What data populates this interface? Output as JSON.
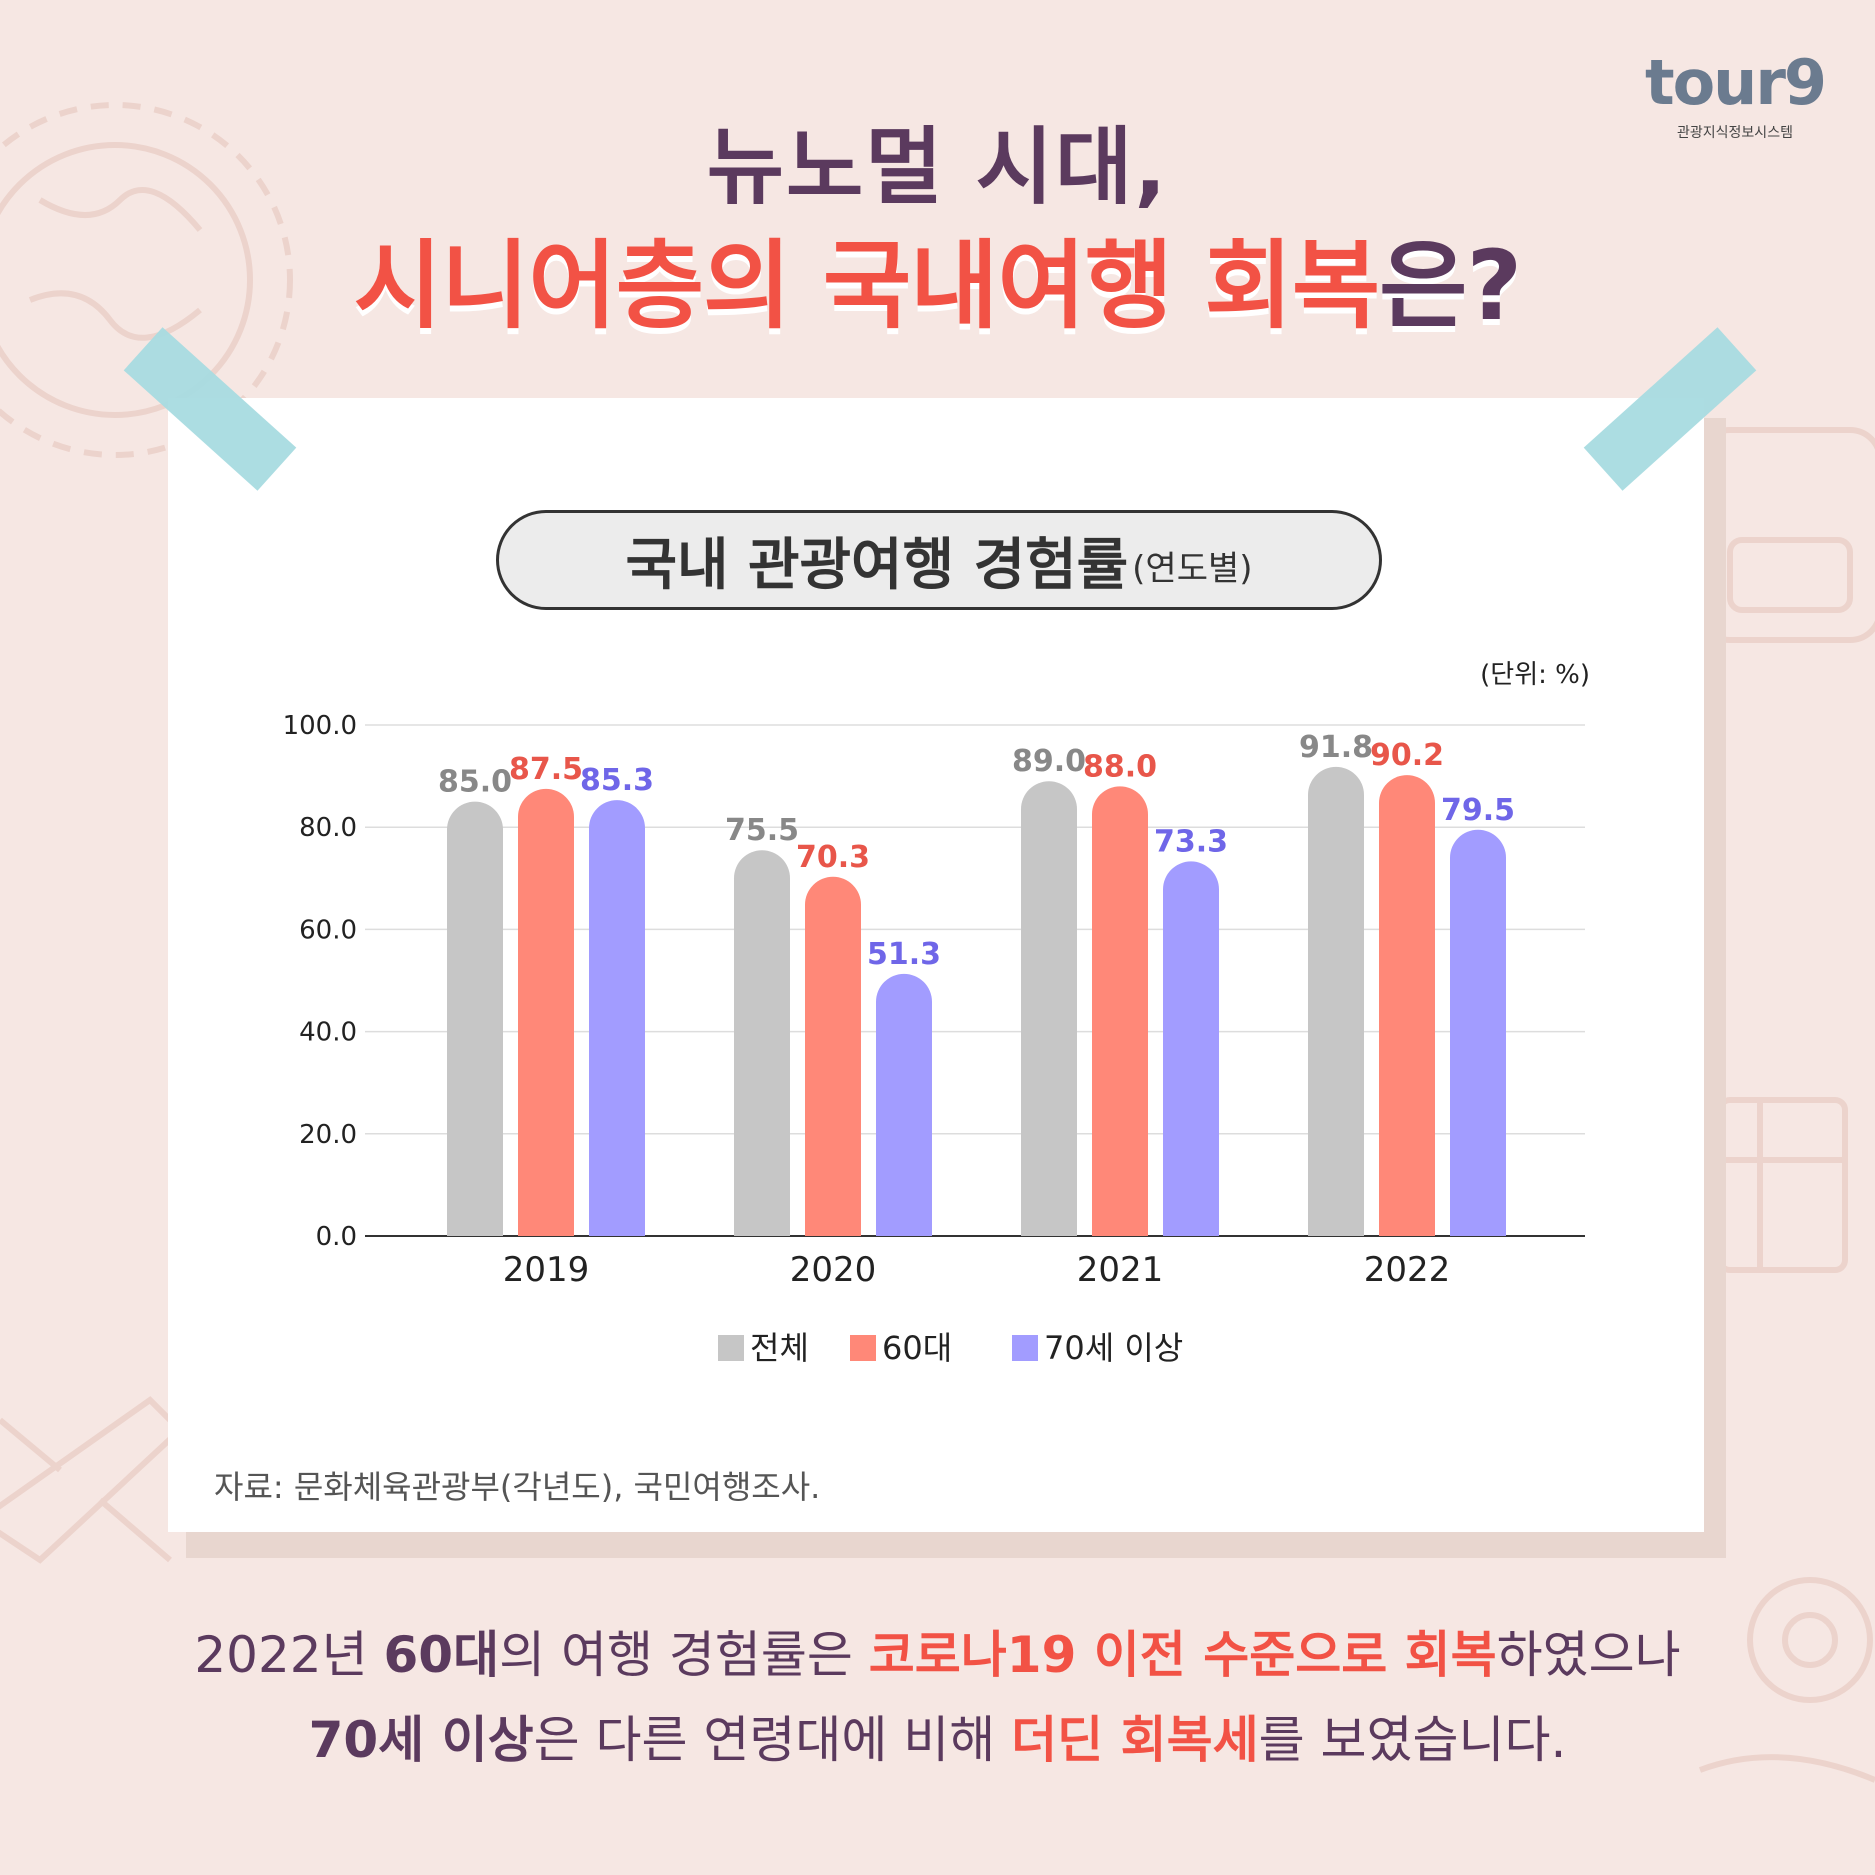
{
  "logo": {
    "word": "tour9",
    "subtitle": "관광지식정보시스템"
  },
  "headline": {
    "line1": "뉴노멀 시대,",
    "line2_part1": "시니어층의 국내여행 회복",
    "line2_part2": "은?"
  },
  "chart_title": {
    "main": "국내 관광여행 경험률",
    "sub": "(연도별)"
  },
  "unit_label": "(단위: %)",
  "chart_data": {
    "type": "bar",
    "categories": [
      "2019",
      "2020",
      "2021",
      "2022"
    ],
    "series": [
      {
        "name": "전체",
        "values": [
          85.0,
          75.5,
          89.0,
          91.8
        ],
        "color": "#c6c6c6",
        "label_color": "#888888"
      },
      {
        "name": "60대",
        "values": [
          87.5,
          70.3,
          88.0,
          90.2
        ],
        "color": "#ff8878",
        "label_color": "#e8564a"
      },
      {
        "name": "70세 이상",
        "values": [
          85.3,
          51.3,
          73.3,
          79.5
        ],
        "color": "#a29cff",
        "label_color": "#6f66e8"
      }
    ],
    "y_ticks": [
      "0.0",
      "20.0",
      "40.0",
      "60.0",
      "80.0",
      "100.0"
    ],
    "ylim": [
      0,
      100
    ],
    "grid": true,
    "legend_position": "bottom",
    "unit": "%"
  },
  "source": "자료: 문화체육관광부(각년도), 국민여행조사.",
  "summary": {
    "l1_a": "2022년 ",
    "l1_b": "60대",
    "l1_c": "의 여행 경험률은 ",
    "l1_d": "코로나19 이전 수준으로 회복",
    "l1_e": "하였으나",
    "l2_a": "70세 이상",
    "l2_b": "은 다른 연령대에 비해 ",
    "l2_c": "더딘 회복세",
    "l2_d": "를 보였습니다."
  }
}
